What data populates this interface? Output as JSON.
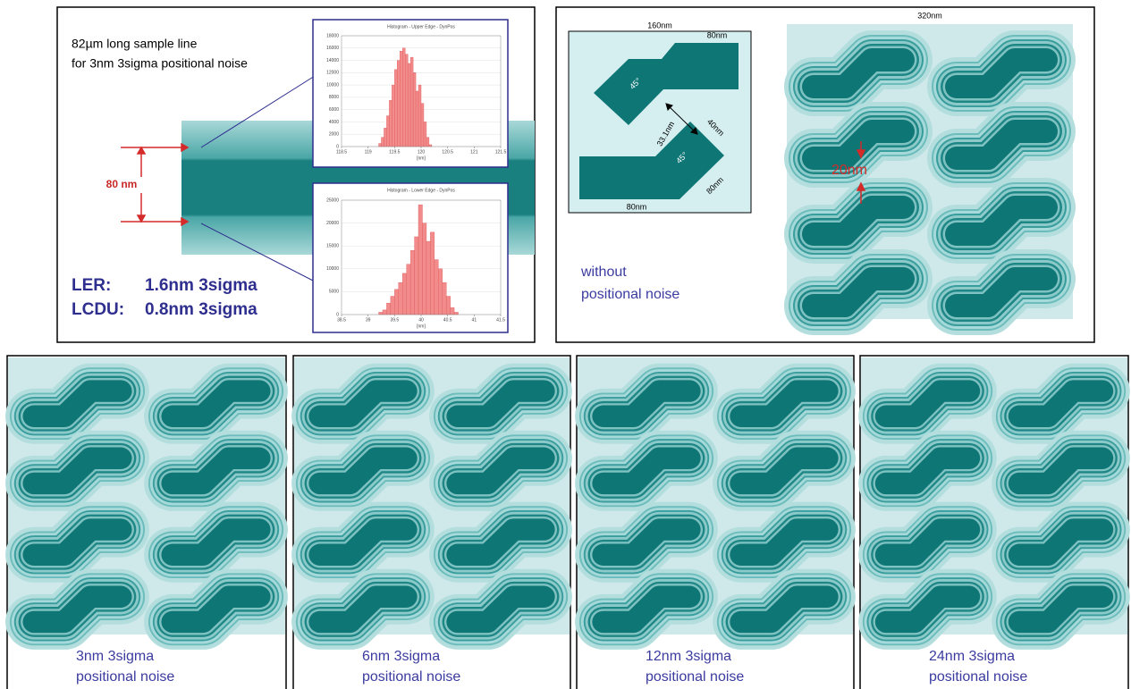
{
  "panel_a": {
    "note_lines": [
      "82µm long sample line",
      "for 3nm 3sigma positional noise"
    ],
    "dimension": "80 nm",
    "ler": {
      "label": "LER:",
      "value": "1.6nm 3sigma"
    },
    "lcdu": {
      "label": "LCDU:",
      "value": "0.8nm 3sigma"
    },
    "histograms": [
      {
        "type": "histogram",
        "title": "Histogram - Upper Edge - DynPos",
        "x_label": "[nm]",
        "bins": [
          119.2,
          119.25,
          119.3,
          119.35,
          119.4,
          119.45,
          119.5,
          119.55,
          119.6,
          119.65,
          119.7,
          119.75,
          119.8,
          119.85,
          119.9,
          119.95,
          120,
          120.05,
          120.1,
          120.15,
          120.2
        ],
        "values": [
          500,
          1500,
          3000,
          5000,
          7500,
          10000,
          12500,
          14000,
          15500,
          16000,
          15000,
          13500,
          14500,
          12000,
          9000,
          10000,
          7000,
          4000,
          1500,
          300
        ],
        "color": "#f28b8b",
        "xlim": [
          118.5,
          121.5
        ],
        "xticks": [
          118.5,
          119,
          119.5,
          120,
          120.5,
          121,
          121.5
        ],
        "ylim": [
          0,
          18000
        ],
        "yticks": [
          0,
          2000,
          4000,
          6000,
          8000,
          10000,
          12000,
          14000,
          16000,
          18000
        ]
      },
      {
        "type": "histogram",
        "title": "Histogram - Lower Edge - DynPos",
        "x_label": "[nm]",
        "bins": [
          39.2,
          39.275,
          39.35,
          39.425,
          39.5,
          39.575,
          39.65,
          39.725,
          39.8,
          39.875,
          39.95,
          40.025,
          40.1,
          40.175,
          40.25,
          40.325,
          40.4,
          40.475,
          40.55,
          40.625,
          40.7
        ],
        "values": [
          500,
          1000,
          2500,
          4000,
          5500,
          7000,
          9000,
          11000,
          14000,
          17000,
          24000,
          20000,
          16000,
          18000,
          12000,
          10000,
          7000,
          4000,
          1500,
          500
        ],
        "color": "#f28b8b",
        "xlim": [
          38.5,
          41.5
        ],
        "xticks": [
          38.5,
          39,
          39.5,
          40,
          40.5,
          41,
          41.5
        ],
        "ylim": [
          0,
          25000
        ],
        "yticks": [
          0,
          5000,
          10000,
          15000,
          20000,
          25000
        ]
      }
    ]
  },
  "panel_b": {
    "design_labels": {
      "width": "160nm",
      "top_arm": "80nm",
      "angle_top": "45°",
      "gap": "33.1nm",
      "arm_width": "40nm",
      "angle_bottom": "45°",
      "arm_length": "80nm",
      "bottom_arm": "80nm"
    },
    "caption": [
      "without",
      "positional noise"
    ],
    "pattern_width": "320nm",
    "spacing": "20nm"
  },
  "noise_panels": [
    {
      "caption": [
        "3nm 3sigma",
        "positional noise"
      ]
    },
    {
      "caption": [
        "6nm 3sigma",
        "positional noise"
      ]
    },
    {
      "caption": [
        "12nm 3sigma",
        "positional noise"
      ]
    },
    {
      "caption": [
        "24nm 3sigma",
        "positional noise"
      ]
    }
  ]
}
